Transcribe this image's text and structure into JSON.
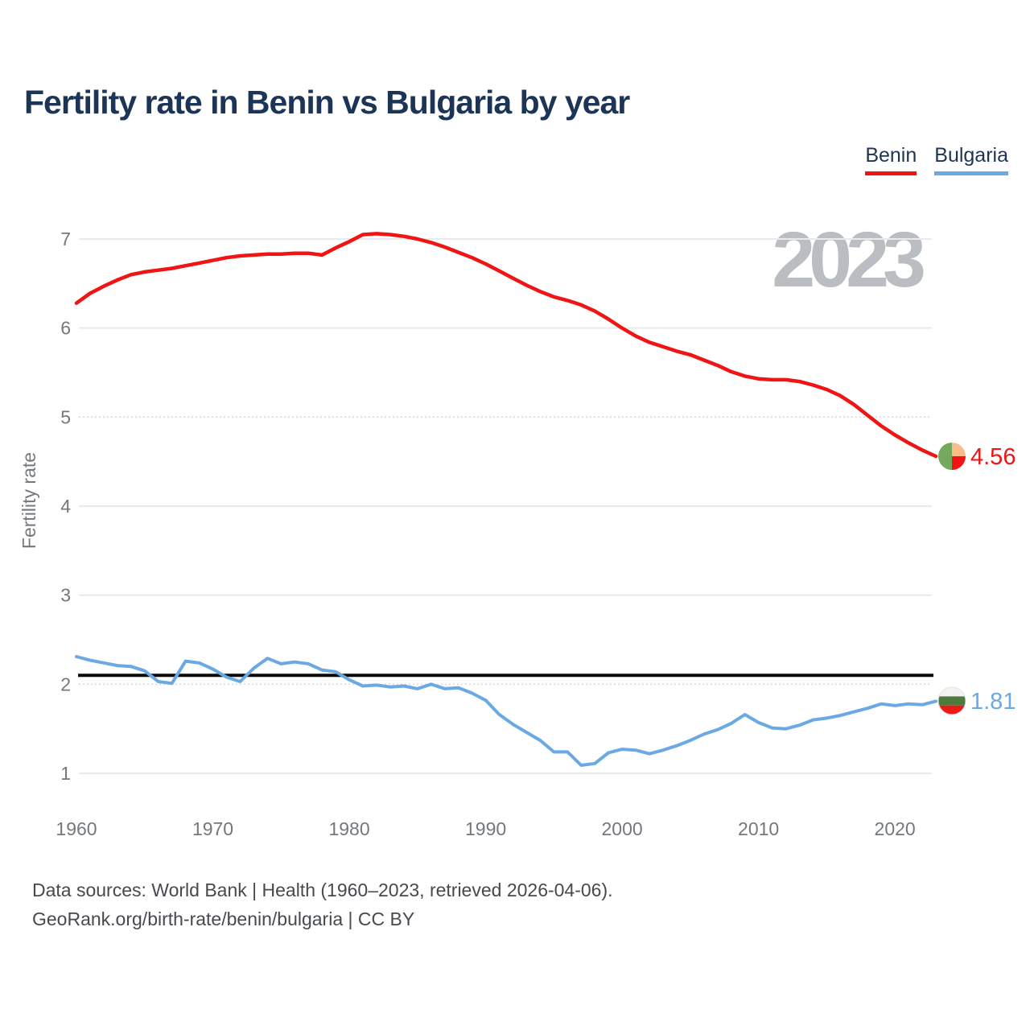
{
  "title": "Fertility rate in Benin vs Bulgaria by year",
  "watermark": "2023",
  "legend": {
    "items": [
      {
        "label": "Benin",
        "color": "#f01414"
      },
      {
        "label": "Bulgaria",
        "color": "#6aa9e3"
      }
    ]
  },
  "y_axis": {
    "title": "Fertility rate"
  },
  "end_labels": {
    "benin": "4.56",
    "bulgaria": "1.81"
  },
  "flags": {
    "benin": {
      "green": "#73a85e",
      "yellow": "#f8bd8b",
      "red": "#f21414"
    },
    "bulgaria": {
      "white": "#f3f3f0",
      "green": "#4e7a3e",
      "red": "#ec1a15",
      "ring": "#e3e3e3"
    }
  },
  "footer": {
    "line1": "Data sources: World Bank | Health (1960–2023, retrieved 2026-04-06).",
    "line2": "GeoRank.org/birth-rate/benin/bulgaria | CC BY"
  },
  "chart_data": {
    "type": "line",
    "title": "Fertility rate in Benin vs Bulgaria by year",
    "xlabel": "",
    "ylabel": "Fertility rate",
    "xlim": [
      1960,
      2023
    ],
    "ylim": [
      1,
      7
    ],
    "xticks": [
      1960,
      1970,
      1980,
      1990,
      2000,
      2010,
      2020
    ],
    "yticks": [
      1,
      2,
      3,
      4,
      5,
      6,
      7
    ],
    "grid": "horizontal",
    "legend_position": "top-right",
    "reference_line": {
      "value": 2.1,
      "color": "#0a0a0a"
    },
    "x": [
      1960,
      1961,
      1962,
      1963,
      1964,
      1965,
      1966,
      1967,
      1968,
      1969,
      1970,
      1971,
      1972,
      1973,
      1974,
      1975,
      1976,
      1977,
      1978,
      1979,
      1980,
      1981,
      1982,
      1983,
      1984,
      1985,
      1986,
      1987,
      1988,
      1989,
      1990,
      1991,
      1992,
      1993,
      1994,
      1995,
      1996,
      1997,
      1998,
      1999,
      2000,
      2001,
      2002,
      2003,
      2004,
      2005,
      2006,
      2007,
      2008,
      2009,
      2010,
      2011,
      2012,
      2013,
      2014,
      2015,
      2016,
      2017,
      2018,
      2019,
      2020,
      2021,
      2022,
      2023
    ],
    "series": [
      {
        "name": "Benin",
        "color": "#f01414",
        "end_value": 4.56,
        "values": [
          6.28,
          6.39,
          6.47,
          6.54,
          6.6,
          6.63,
          6.65,
          6.67,
          6.7,
          6.73,
          6.76,
          6.79,
          6.81,
          6.82,
          6.83,
          6.83,
          6.84,
          6.84,
          6.82,
          6.9,
          6.97,
          7.05,
          7.06,
          7.05,
          7.03,
          7.0,
          6.96,
          6.91,
          6.85,
          6.79,
          6.72,
          6.64,
          6.56,
          6.48,
          6.41,
          6.35,
          6.31,
          6.26,
          6.19,
          6.1,
          6.0,
          5.91,
          5.84,
          5.79,
          5.74,
          5.7,
          5.64,
          5.58,
          5.51,
          5.46,
          5.43,
          5.42,
          5.42,
          5.4,
          5.36,
          5.31,
          5.24,
          5.14,
          5.02,
          4.9,
          4.8,
          4.71,
          4.63,
          4.56
        ]
      },
      {
        "name": "Bulgaria",
        "color": "#6aa9e3",
        "end_value": 1.81,
        "values": [
          2.31,
          2.27,
          2.24,
          2.21,
          2.2,
          2.15,
          2.03,
          2.01,
          2.26,
          2.24,
          2.17,
          2.08,
          2.03,
          2.18,
          2.29,
          2.23,
          2.25,
          2.23,
          2.16,
          2.14,
          2.05,
          1.98,
          1.99,
          1.97,
          1.98,
          1.95,
          2.0,
          1.95,
          1.96,
          1.9,
          1.82,
          1.66,
          1.55,
          1.46,
          1.37,
          1.24,
          1.24,
          1.09,
          1.11,
          1.23,
          1.27,
          1.26,
          1.22,
          1.26,
          1.31,
          1.37,
          1.44,
          1.49,
          1.56,
          1.66,
          1.57,
          1.51,
          1.5,
          1.54,
          1.6,
          1.62,
          1.65,
          1.69,
          1.73,
          1.78,
          1.76,
          1.78,
          1.77,
          1.81
        ]
      }
    ]
  }
}
